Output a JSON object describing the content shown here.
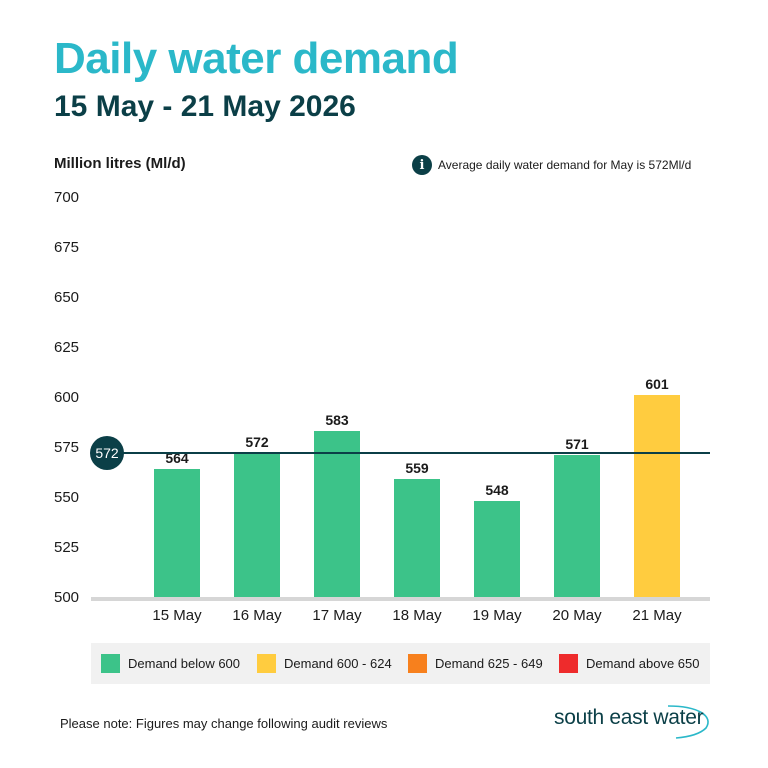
{
  "header": {
    "title": "Daily water demand",
    "subtitle": "15 May - 21 May 2026"
  },
  "axis_unit": "Million litres (Ml/d)",
  "info": {
    "icon": "info-icon",
    "note": "Average daily water demand for May is 572Ml/d"
  },
  "chart_data": {
    "type": "bar",
    "categories": [
      "15 May",
      "16 May",
      "17 May",
      "18 May",
      "19 May",
      "20 May",
      "21 May"
    ],
    "values": [
      564,
      572,
      583,
      559,
      548,
      571,
      601
    ],
    "value_labels": [
      "564",
      "572",
      "583",
      "559",
      "548",
      "571",
      "601"
    ],
    "ylabel": "Million litres (Ml/d)",
    "ylim": [
      500,
      700
    ],
    "yticks": [
      "700",
      "675",
      "650",
      "625",
      "600",
      "575",
      "550",
      "525",
      "500"
    ],
    "ytick_values": [
      700,
      675,
      650,
      625,
      600,
      575,
      550,
      525,
      500
    ],
    "reference_line": {
      "value": 572,
      "label": "572"
    },
    "grid": false,
    "legend_position": "bottom"
  },
  "legend": [
    {
      "label": "Demand below 600",
      "color": "#3cc389"
    },
    {
      "label": "Demand 600 - 624",
      "color": "#ffcc3f"
    },
    {
      "label": "Demand 625 - 649",
      "color": "#f7801d"
    },
    {
      "label": "Demand above 650",
      "color": "#ee2b2c"
    }
  ],
  "colors": {
    "below_600": "#3cc389",
    "600_624": "#ffcc3f",
    "625_649": "#f7801d",
    "above_650": "#ee2b2c",
    "title": "#2bb8c9",
    "dark": "#0b3f47"
  },
  "footnote": "Please note: Figures may change following audit reviews",
  "brand": "south east water"
}
